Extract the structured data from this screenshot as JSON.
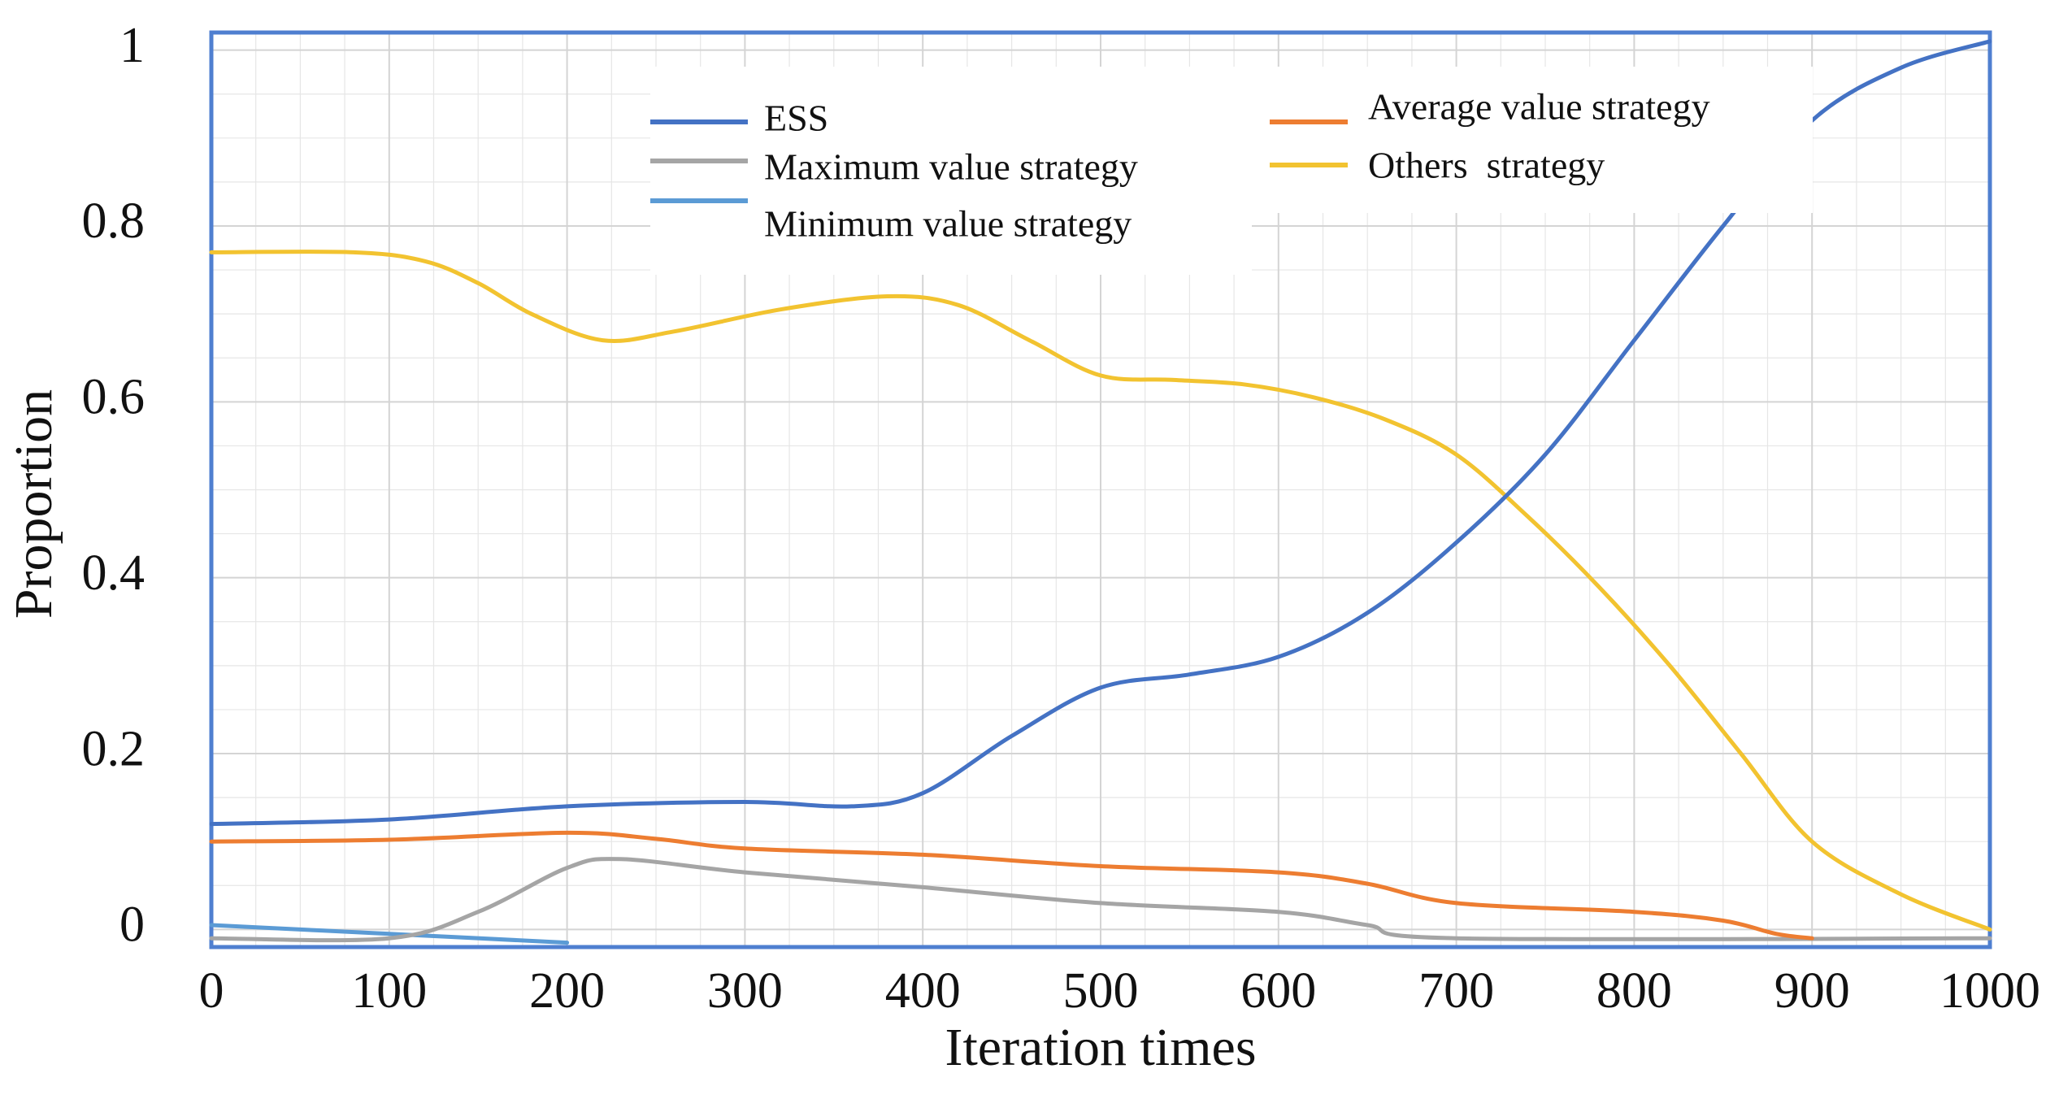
{
  "chart_data": {
    "type": "line",
    "title": "",
    "xlabel": "Iteration times",
    "ylabel": "Proportion",
    "xlim": [
      0,
      1000
    ],
    "ylim": [
      -0.02,
      1.02
    ],
    "x_ticks": [
      0,
      100,
      200,
      300,
      400,
      500,
      600,
      700,
      800,
      900,
      1000
    ],
    "x_tick_labels": [
      "0",
      "100",
      "200",
      "300",
      "400",
      "500",
      "600",
      "700",
      "800",
      "900",
      "1000"
    ],
    "y_ticks": [
      0,
      0.2,
      0.4,
      0.6,
      0.8,
      1
    ],
    "y_tick_labels": [
      "0",
      "0.2",
      "0.4",
      "0.6",
      "0.8",
      "1"
    ],
    "grid": true,
    "legend_position": "top",
    "series": [
      {
        "name": "ESS",
        "color": "#4472C4",
        "points": [
          [
            0,
            0.12
          ],
          [
            100,
            0.125
          ],
          [
            200,
            0.14
          ],
          [
            300,
            0.145
          ],
          [
            360,
            0.14
          ],
          [
            400,
            0.155
          ],
          [
            450,
            0.22
          ],
          [
            500,
            0.275
          ],
          [
            550,
            0.29
          ],
          [
            600,
            0.31
          ],
          [
            650,
            0.36
          ],
          [
            700,
            0.44
          ],
          [
            750,
            0.54
          ],
          [
            800,
            0.67
          ],
          [
            850,
            0.8
          ],
          [
            900,
            0.92
          ],
          [
            950,
            0.98
          ],
          [
            1000,
            1.01
          ]
        ]
      },
      {
        "name": "Maximum value strategy",
        "color": "#A5A5A5",
        "points": [
          [
            0,
            -0.01
          ],
          [
            100,
            -0.01
          ],
          [
            150,
            0.02
          ],
          [
            200,
            0.07
          ],
          [
            230,
            0.08
          ],
          [
            300,
            0.065
          ],
          [
            400,
            0.048
          ],
          [
            500,
            0.03
          ],
          [
            600,
            0.02
          ],
          [
            650,
            0.005
          ],
          [
            700,
            -0.01
          ],
          [
            1000,
            -0.01
          ]
        ]
      },
      {
        "name": "Minimum value strategy",
        "color": "#5B9BD5",
        "points": [
          [
            0,
            0.005
          ],
          [
            100,
            -0.005
          ],
          [
            200,
            -0.015
          ]
        ]
      },
      {
        "name": "Average value strategy",
        "color": "#ED7D31",
        "points": [
          [
            0,
            0.1
          ],
          [
            100,
            0.102
          ],
          [
            200,
            0.11
          ],
          [
            250,
            0.103
          ],
          [
            300,
            0.092
          ],
          [
            400,
            0.085
          ],
          [
            500,
            0.072
          ],
          [
            600,
            0.065
          ],
          [
            650,
            0.052
          ],
          [
            700,
            0.03
          ],
          [
            800,
            0.02
          ],
          [
            850,
            0.01
          ],
          [
            880,
            -0.005
          ],
          [
            900,
            -0.01
          ]
        ]
      },
      {
        "name": "Others  strategy",
        "color": "#F2C330",
        "points": [
          [
            0,
            0.77
          ],
          [
            80,
            0.77
          ],
          [
            120,
            0.76
          ],
          [
            150,
            0.735
          ],
          [
            180,
            0.7
          ],
          [
            220,
            0.67
          ],
          [
            260,
            0.68
          ],
          [
            320,
            0.705
          ],
          [
            380,
            0.72
          ],
          [
            420,
            0.71
          ],
          [
            460,
            0.67
          ],
          [
            500,
            0.63
          ],
          [
            540,
            0.625
          ],
          [
            580,
            0.62
          ],
          [
            620,
            0.605
          ],
          [
            660,
            0.58
          ],
          [
            700,
            0.54
          ],
          [
            740,
            0.47
          ],
          [
            780,
            0.39
          ],
          [
            820,
            0.3
          ],
          [
            860,
            0.2
          ],
          [
            900,
            0.1
          ],
          [
            950,
            0.04
          ],
          [
            1000,
            0.0
          ]
        ]
      }
    ]
  }
}
